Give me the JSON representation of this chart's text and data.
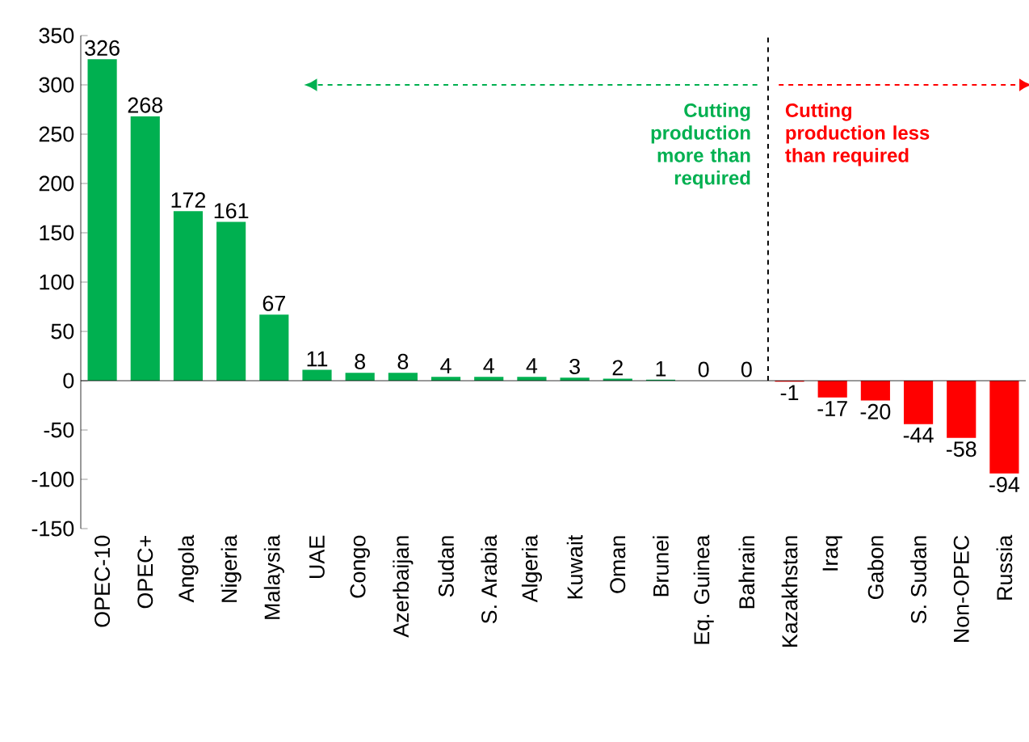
{
  "chart_data": {
    "type": "bar",
    "categories": [
      "OPEC-10",
      "OPEC+",
      "Angola",
      "Nigeria",
      "Malaysia",
      "UAE",
      "Congo",
      "Azerbaijan",
      "Sudan",
      "S. Arabia",
      "Algeria",
      "Kuwait",
      "Oman",
      "Brunei",
      "Eq. Guinea",
      "Bahrain",
      "Kazakhstan",
      "Iraq",
      "Gabon",
      "S. Sudan",
      "Non-OPEC",
      "Russia"
    ],
    "values": [
      326,
      268,
      172,
      161,
      67,
      11,
      8,
      8,
      4,
      4,
      4,
      3,
      2,
      1,
      0,
      0,
      -1,
      -17,
      -20,
      -44,
      -58,
      -94
    ],
    "colors": [
      "#00b050",
      "#00b050",
      "#00b050",
      "#00b050",
      "#00b050",
      "#00b050",
      "#00b050",
      "#00b050",
      "#00b050",
      "#00b050",
      "#00b050",
      "#00b050",
      "#00b050",
      "#00b050",
      "#00b050",
      "#00b050",
      "#ff0000",
      "#ff0000",
      "#ff0000",
      "#ff0000",
      "#ff0000",
      "#ff0000"
    ],
    "ylim": [
      -150,
      350
    ],
    "yticks": [
      -150,
      -100,
      -50,
      0,
      50,
      100,
      150,
      200,
      250,
      300,
      350
    ],
    "data_labels": true,
    "grid": false,
    "annotations": [
      "Cutting production more than required",
      "Cutting production less than required"
    ]
  }
}
